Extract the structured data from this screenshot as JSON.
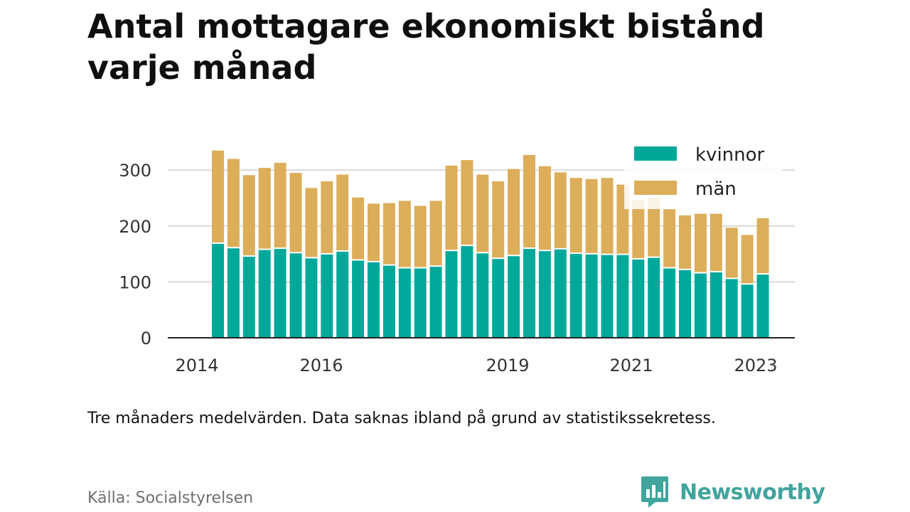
{
  "title": "Antal mottagare ekonomiskt bistånd varje månad",
  "note": "Tre månaders medelvärden. Data saknas ibland på grund av statistikssekretess.",
  "source": "Källa: Socialstyrelsen",
  "brand": {
    "name": "Newsworthy",
    "icon": "newsworthy-chart-logo-icon"
  },
  "colors": {
    "women": "#00a89a",
    "men": "#dcae5a",
    "grid": "#d9d9d9",
    "axis": "#222222",
    "brand": "#3fa59d"
  },
  "chart_data": {
    "type": "bar",
    "stacked": true,
    "ylim": [
      0,
      340
    ],
    "yticks": [
      0,
      100,
      200,
      300
    ],
    "xticks": [
      "2014",
      "2016",
      "2019",
      "2021",
      "2023"
    ],
    "grid": true,
    "legend_position": "top-right",
    "categories": [
      "2014-1",
      "2014-2",
      "2014-3",
      "2015-1",
      "2015-2",
      "2015-3",
      "2015-4",
      "2016-1",
      "2016-2",
      "2016-3",
      "2016-4",
      "2017-1",
      "2017-2",
      "2017-3",
      "2017-4",
      "2018-1",
      "2018-2",
      "2018-3",
      "2018-4",
      "2019-1",
      "2019-2",
      "2019-3",
      "2019-4",
      "2020-1",
      "2020-2",
      "2020-3",
      "2020-4",
      "2021-1",
      "2021-2",
      "2021-3",
      "2021-4",
      "2022-1",
      "2022-2",
      "2022-3",
      "2022-4",
      "2023-1"
    ],
    "series": [
      {
        "name": "kvinnor",
        "values": [
          168,
          160,
          145,
          157,
          159,
          151,
          142,
          149,
          154,
          138,
          135,
          129,
          124,
          124,
          127,
          155,
          164,
          151,
          141,
          146,
          159,
          155,
          158,
          150,
          149,
          148,
          148,
          140,
          143,
          124,
          121,
          115,
          117,
          105,
          95,
          113
        ]
      },
      {
        "name": "män",
        "values": [
          167,
          160,
          146,
          147,
          154,
          144,
          126,
          131,
          138,
          113,
          105,
          112,
          121,
          112,
          118,
          153,
          154,
          141,
          139,
          156,
          168,
          152,
          138,
          136,
          135,
          138,
          126,
          107,
          108,
          106,
          98,
          107,
          105,
          92,
          89,
          101
        ]
      }
    ]
  }
}
